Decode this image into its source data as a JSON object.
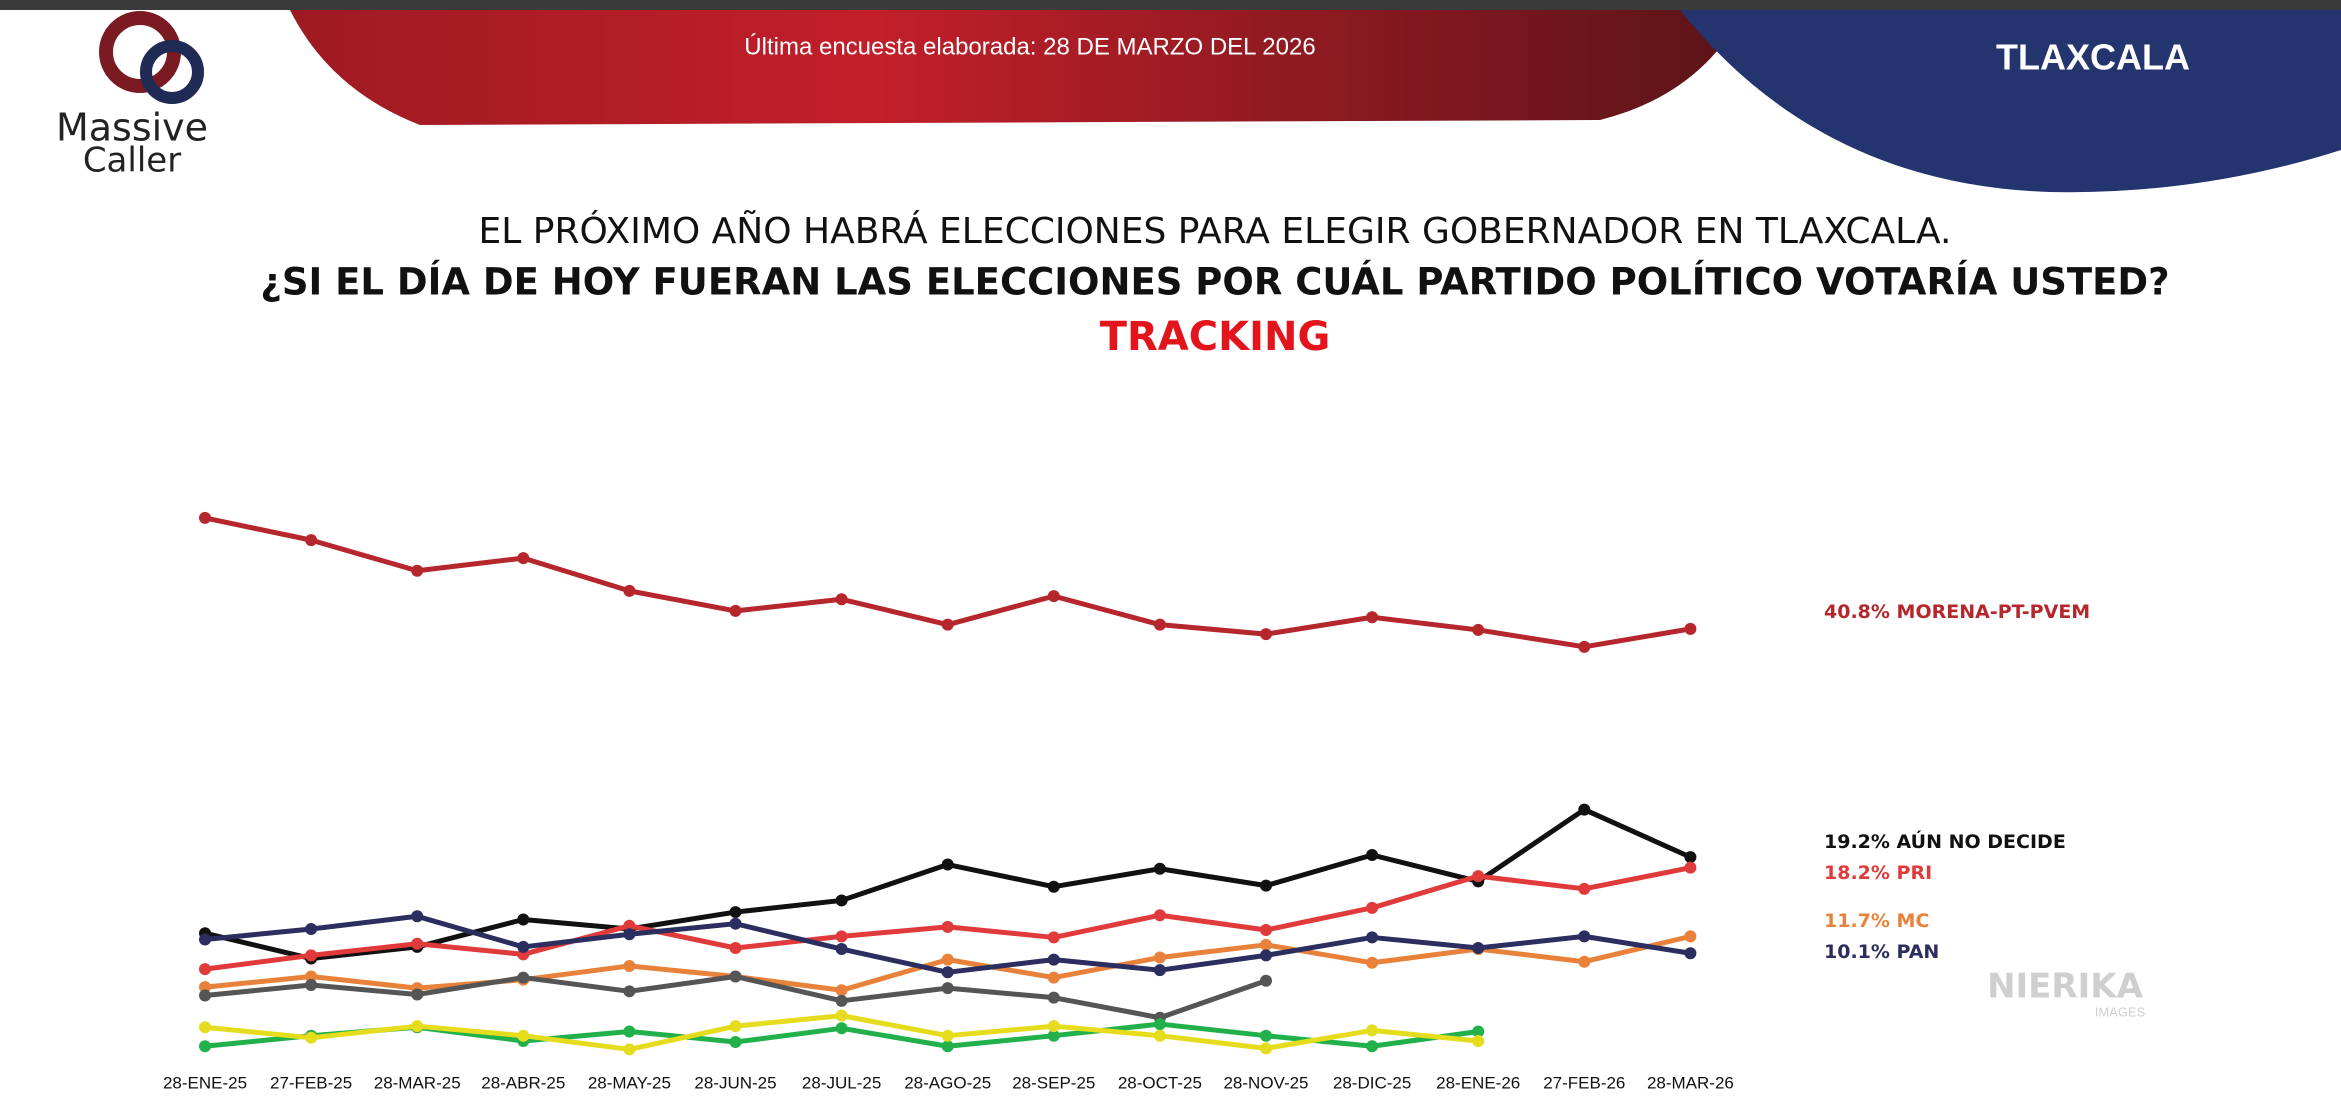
{
  "header": {
    "survey_note": "Última encuesta elaborada: 28 DE MARZO DEL 2026",
    "region": "TLAXCALA",
    "logo": [
      "Massive",
      "Caller"
    ],
    "watermark": [
      "NIERIKA",
      "IMAGES"
    ]
  },
  "chart_data": {
    "type": "line",
    "title": "EL PRÓXIMO AÑO HABRÁ ELECCIONES PARA ELEGIR GOBERNADOR EN TLAXCALA.",
    "subtitle": "¿SI EL DÍA DE HOY FUERAN LAS ELECCIONES POR CUÁL PARTIDO POLÍTICO VOTARÍA USTED?",
    "annotation": "TRACKING",
    "categories": [
      "28-ENE-25",
      "27-FEB-25",
      "28-MAR-25",
      "28-ABR-25",
      "28-MAY-25",
      "28-JUN-25",
      "28-JUL-25",
      "28-AGO-25",
      "28-SEP-25",
      "28-OCT-25",
      "28-NOV-25",
      "28-DIC-25",
      "28-ENE-26",
      "27-FEB-26",
      "28-MAR-26"
    ],
    "ylim": [
      0,
      60
    ],
    "series": [
      {
        "name": "MORENA-PT-PVEM",
        "color": "#b5272d",
        "values": [
          51.3,
          49.2,
          46.3,
          47.5,
          44.4,
          42.5,
          43.6,
          41.2,
          43.9,
          41.2,
          40.3,
          41.9,
          40.7,
          39.1,
          40.8
        ],
        "value_labels": [
          null,
          null,
          null,
          null,
          null,
          null,
          null,
          null,
          null,
          null,
          null,
          null,
          null,
          null,
          "40.8%"
        ]
      },
      {
        "name": "AÚN NO DECIDE",
        "color": "#111111",
        "values": [
          12.0,
          9.6,
          10.7,
          13.3,
          12.4,
          14.0,
          15.1,
          18.5,
          16.4,
          18.1,
          16.5,
          19.4,
          16.9,
          23.7,
          19.2
        ],
        "value_labels": [
          null,
          null,
          null,
          null,
          null,
          null,
          null,
          null,
          null,
          null,
          null,
          null,
          null,
          null,
          "19.2%"
        ]
      },
      {
        "name": "PRI",
        "color": "#e03a3a",
        "values": [
          8.6,
          9.9,
          11.0,
          10.0,
          12.7,
          10.6,
          11.7,
          12.6,
          11.6,
          13.7,
          12.3,
          14.4,
          17.4,
          16.2,
          18.2
        ],
        "value_labels": [
          null,
          null,
          null,
          null,
          null,
          null,
          null,
          null,
          null,
          null,
          null,
          null,
          null,
          null,
          "18.2%"
        ]
      },
      {
        "name": "MC",
        "color": "#e8823a",
        "values": [
          6.9,
          7.9,
          6.8,
          7.6,
          8.9,
          7.9,
          6.6,
          9.5,
          7.8,
          9.7,
          10.9,
          9.2,
          10.5,
          9.3,
          11.7
        ],
        "value_labels": [
          null,
          null,
          null,
          null,
          null,
          null,
          null,
          null,
          null,
          null,
          null,
          null,
          null,
          null,
          "11.7%"
        ]
      },
      {
        "name": "PAN",
        "color": "#2b2e5e",
        "values": [
          11.4,
          12.4,
          13.6,
          10.7,
          11.9,
          12.9,
          10.5,
          8.3,
          9.5,
          8.5,
          9.9,
          11.6,
          10.6,
          11.7,
          10.1
        ],
        "value_labels": [
          null,
          null,
          null,
          null,
          null,
          null,
          null,
          null,
          null,
          null,
          null,
          null,
          null,
          null,
          "10.1%"
        ]
      },
      {
        "color": "#555555",
        "values": [
          6.1,
          7.1,
          6.2,
          7.8,
          6.5,
          7.9,
          5.6,
          6.8,
          5.9,
          4.0,
          7.5,
          null,
          null,
          null,
          null
        ]
      },
      {
        "color": "#22b04b",
        "values": [
          1.3,
          2.3,
          3.1,
          1.8,
          2.7,
          1.7,
          3.0,
          1.3,
          2.3,
          3.4,
          2.3,
          1.3,
          2.7,
          null,
          null
        ]
      },
      {
        "color": "#e6dc1e",
        "values": [
          3.1,
          2.1,
          3.2,
          2.3,
          1.0,
          3.2,
          4.2,
          2.3,
          3.2,
          2.3,
          1.1,
          2.8,
          1.8,
          null,
          null
        ]
      }
    ]
  }
}
